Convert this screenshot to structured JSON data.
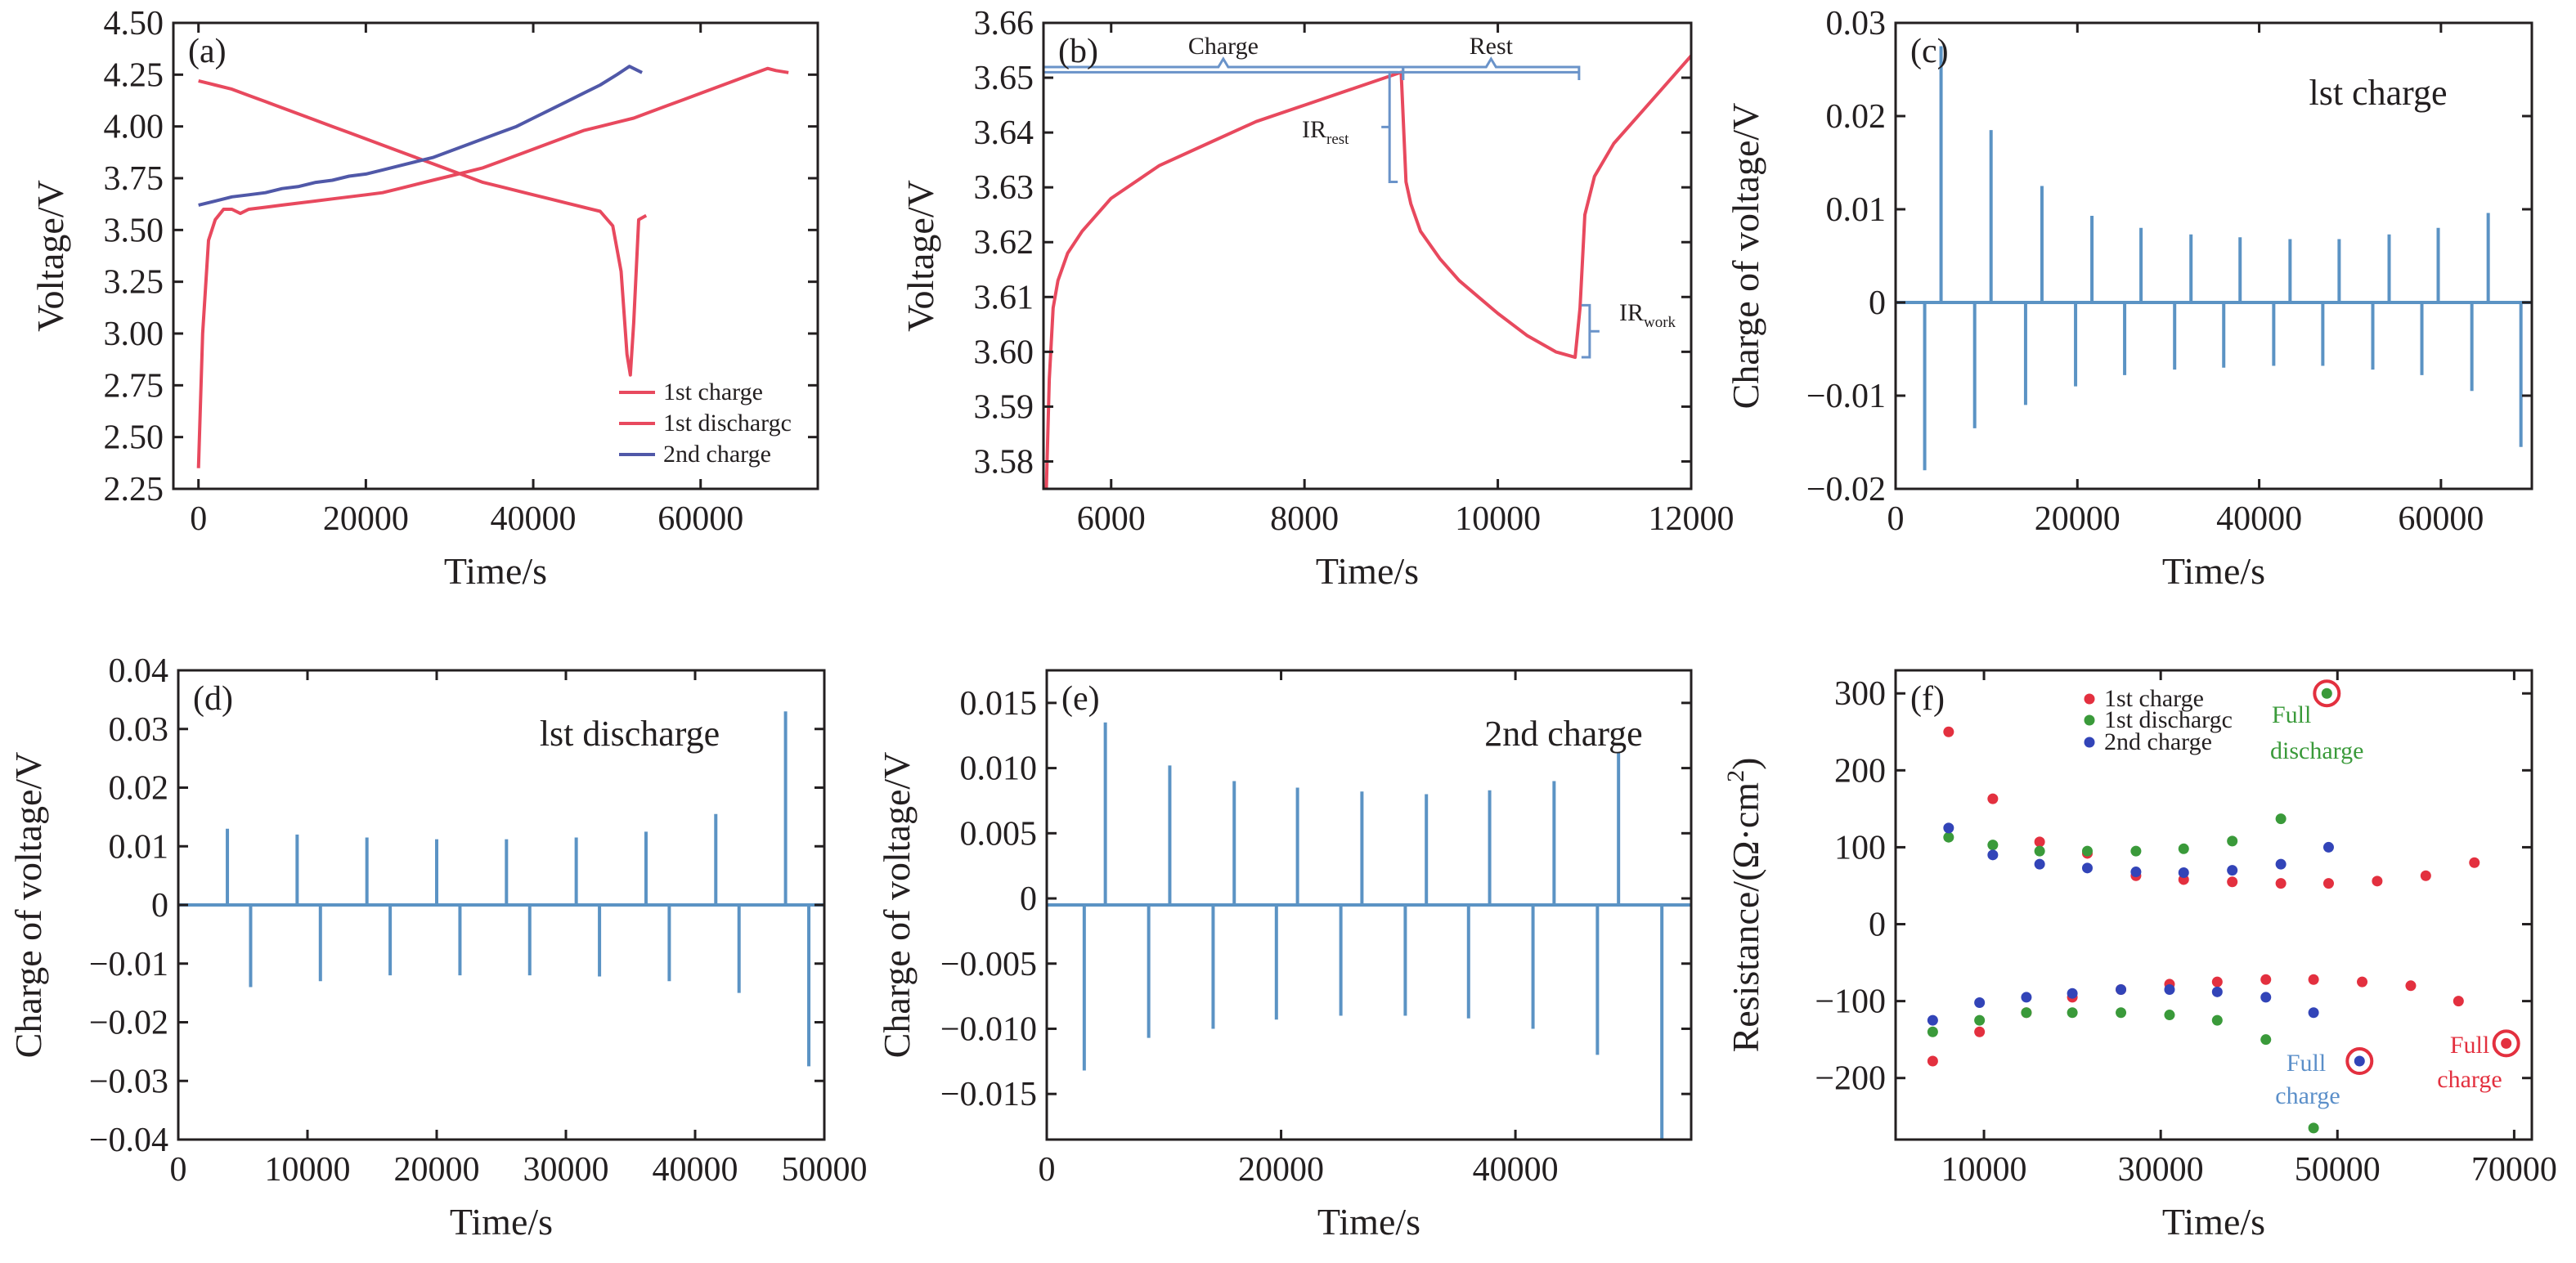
{
  "colors": {
    "charge1": "#e8495e",
    "discharge1": "#e8495e",
    "charge2": "#5058a8",
    "spike": "#5b93c4",
    "scatter_red": "#e3303f",
    "scatter_green": "#3a9a3a",
    "scatter_blue": "#3244b8",
    "annot_blue": "#5b8fc9",
    "bracket": "#6a93c9"
  },
  "chart_data": [
    {
      "id": "a",
      "panel_label": "(a)",
      "type": "line",
      "xlabel": "Time/s",
      "ylabel": "Voltage/V",
      "xlim": [
        -3000,
        74000
      ],
      "ylim": [
        2.25,
        4.5
      ],
      "xticks": [
        0,
        20000,
        40000,
        60000
      ],
      "xtick_labels": [
        "0",
        "20000",
        "40000",
        "60000"
      ],
      "yticks": [
        2.25,
        2.5,
        2.75,
        3.0,
        3.25,
        3.5,
        3.75,
        4.0,
        4.25,
        4.5
      ],
      "ytick_labels": [
        "2.25",
        "2.50",
        "2.75",
        "3.00",
        "3.25",
        "3.50",
        "3.75",
        "4.00",
        "4.25",
        "4.50"
      ],
      "legend_position": "bottom-right",
      "series": [
        {
          "name": "1st charge",
          "color_key": "charge1",
          "x": [
            0,
            500,
            1200,
            2000,
            3000,
            4000,
            5000,
            6000,
            8000,
            10000,
            12000,
            14000,
            16000,
            18000,
            20000,
            22000,
            24000,
            26000,
            28000,
            30000,
            32000,
            34000,
            36000,
            38000,
            40000,
            42000,
            44000,
            46000,
            48000,
            50000,
            52000,
            54000,
            56000,
            58000,
            60000,
            62000,
            64000,
            66000,
            68000,
            69000,
            70500
          ],
          "y": [
            2.35,
            3.0,
            3.45,
            3.55,
            3.6,
            3.6,
            3.58,
            3.6,
            3.61,
            3.62,
            3.63,
            3.64,
            3.65,
            3.66,
            3.67,
            3.68,
            3.7,
            3.72,
            3.74,
            3.76,
            3.78,
            3.8,
            3.83,
            3.86,
            3.89,
            3.92,
            3.95,
            3.98,
            4.0,
            4.02,
            4.04,
            4.07,
            4.1,
            4.13,
            4.16,
            4.19,
            4.22,
            4.25,
            4.28,
            4.27,
            4.26
          ]
        },
        {
          "name": "1st dischargc",
          "color_key": "discharge1",
          "x": [
            0,
            2000,
            4000,
            6000,
            8000,
            10000,
            12000,
            14000,
            16000,
            18000,
            20000,
            22000,
            24000,
            26000,
            28000,
            30000,
            32000,
            34000,
            36000,
            38000,
            40000,
            42000,
            44000,
            46000,
            48000,
            49500,
            50500,
            51200,
            51600,
            52000,
            52600,
            53500
          ],
          "y": [
            4.22,
            4.2,
            4.18,
            4.15,
            4.12,
            4.09,
            4.06,
            4.03,
            4.0,
            3.97,
            3.94,
            3.91,
            3.88,
            3.85,
            3.82,
            3.79,
            3.76,
            3.73,
            3.71,
            3.69,
            3.67,
            3.65,
            3.63,
            3.61,
            3.59,
            3.52,
            3.3,
            2.9,
            2.8,
            3.05,
            3.55,
            3.57
          ]
        },
        {
          "name": "2nd charge",
          "color_key": "charge2",
          "x": [
            0,
            2000,
            4000,
            6000,
            8000,
            10000,
            12000,
            14000,
            16000,
            18000,
            20000,
            22000,
            24000,
            26000,
            28000,
            30000,
            32000,
            34000,
            36000,
            38000,
            40000,
            42000,
            44000,
            46000,
            48000,
            50000,
            51500,
            53000
          ],
          "y": [
            3.62,
            3.64,
            3.66,
            3.67,
            3.68,
            3.7,
            3.71,
            3.73,
            3.74,
            3.76,
            3.77,
            3.79,
            3.81,
            3.83,
            3.85,
            3.88,
            3.91,
            3.94,
            3.97,
            4.0,
            4.04,
            4.08,
            4.12,
            4.16,
            4.2,
            4.25,
            4.29,
            4.26
          ]
        }
      ]
    },
    {
      "id": "b",
      "panel_label": "(b)",
      "type": "line",
      "xlabel": "Time/s",
      "ylabel": "Voltage/V",
      "xlim": [
        5300,
        12000
      ],
      "ylim": [
        3.575,
        3.66
      ],
      "xticks": [
        6000,
        8000,
        10000,
        12000
      ],
      "xtick_labels": [
        "6000",
        "8000",
        "10000",
        "12000"
      ],
      "yticks": [
        3.58,
        3.59,
        3.6,
        3.61,
        3.62,
        3.63,
        3.64,
        3.65,
        3.66
      ],
      "ytick_labels": [
        "3.58",
        "3.59",
        "3.60",
        "3.61",
        "3.62",
        "3.63",
        "3.64",
        "3.65",
        "3.66"
      ],
      "annotations": {
        "charge": "Charge",
        "rest": "Rest",
        "ir_rest": "IR",
        "ir_rest_sub": "rest",
        "ir_work": "IR",
        "ir_work_sub": "work"
      },
      "series": [
        {
          "name": "",
          "color_key": "charge1",
          "x": [
            5330,
            5360,
            5400,
            5450,
            5550,
            5700,
            6000,
            6500,
            7000,
            7500,
            8000,
            8500,
            9000,
            9050,
            9100,
            9200,
            9400,
            9600,
            9800,
            10000,
            10300,
            10600,
            10800,
            10850,
            10900,
            11000,
            11200,
            11500,
            11800,
            12000
          ],
          "y": [
            3.575,
            3.595,
            3.608,
            3.613,
            3.618,
            3.622,
            3.628,
            3.634,
            3.638,
            3.642,
            3.645,
            3.648,
            3.651,
            3.631,
            3.627,
            3.622,
            3.617,
            3.613,
            3.61,
            3.607,
            3.603,
            3.6,
            3.599,
            3.608,
            3.625,
            3.632,
            3.638,
            3.644,
            3.65,
            3.654
          ]
        }
      ]
    },
    {
      "id": "c",
      "panel_label": "(c)",
      "type": "line",
      "title": "lst charge",
      "xlabel": "Time/s",
      "ylabel": "Charge of voltage/V",
      "xlim": [
        0,
        70000
      ],
      "ylim": [
        -0.02,
        0.03
      ],
      "xticks": [
        0,
        20000,
        40000,
        60000
      ],
      "xtick_labels": [
        "0",
        "20000",
        "40000",
        "60000"
      ],
      "yticks": [
        -0.02,
        -0.01,
        0,
        0.01,
        0.02,
        0.03
      ],
      "ytick_labels": [
        "−0.02",
        "−0.01",
        "0",
        "0.01",
        "0.02",
        "0.03"
      ],
      "baseline": 0,
      "spikes": [
        {
          "x": 3200,
          "y": -0.018
        },
        {
          "x": 5000,
          "y": 0.0275
        },
        {
          "x": 8700,
          "y": -0.0135
        },
        {
          "x": 10500,
          "y": 0.0185
        },
        {
          "x": 14300,
          "y": -0.011
        },
        {
          "x": 16100,
          "y": 0.0125
        },
        {
          "x": 19800,
          "y": -0.009
        },
        {
          "x": 21600,
          "y": 0.0093
        },
        {
          "x": 25200,
          "y": -0.0078
        },
        {
          "x": 27000,
          "y": 0.008
        },
        {
          "x": 30700,
          "y": -0.0072
        },
        {
          "x": 32500,
          "y": 0.0073
        },
        {
          "x": 36100,
          "y": -0.007
        },
        {
          "x": 37900,
          "y": 0.007
        },
        {
          "x": 41600,
          "y": -0.0068
        },
        {
          "x": 43400,
          "y": 0.0068
        },
        {
          "x": 47000,
          "y": -0.0068
        },
        {
          "x": 48800,
          "y": 0.0068
        },
        {
          "x": 52500,
          "y": -0.0072
        },
        {
          "x": 54300,
          "y": 0.0073
        },
        {
          "x": 57900,
          "y": -0.0078
        },
        {
          "x": 59700,
          "y": 0.008
        },
        {
          "x": 63400,
          "y": -0.0095
        },
        {
          "x": 65200,
          "y": 0.0096
        },
        {
          "x": 68800,
          "y": -0.0155
        }
      ]
    },
    {
      "id": "d",
      "panel_label": "(d)",
      "type": "line",
      "title": "lst discharge",
      "xlabel": "Time/s",
      "ylabel": "Charge of voltage/V",
      "xlim": [
        0,
        50000
      ],
      "ylim": [
        -0.04,
        0.04
      ],
      "xticks": [
        0,
        10000,
        20000,
        30000,
        40000,
        50000
      ],
      "xtick_labels": [
        "0",
        "10000",
        "20000",
        "30000",
        "40000",
        "50000"
      ],
      "yticks": [
        -0.04,
        -0.03,
        -0.02,
        -0.01,
        0,
        0.01,
        0.02,
        0.03,
        0.04
      ],
      "ytick_labels": [
        "−0.04",
        "−0.03",
        "−0.02",
        "−0.01",
        "0",
        "0.01",
        "0.02",
        "0.03",
        "0.04"
      ],
      "baseline": 0,
      "spikes": [
        {
          "x": 3800,
          "y": 0.013
        },
        {
          "x": 5600,
          "y": -0.014
        },
        {
          "x": 9200,
          "y": 0.012
        },
        {
          "x": 11000,
          "y": -0.013
        },
        {
          "x": 14600,
          "y": 0.0115
        },
        {
          "x": 16400,
          "y": -0.012
        },
        {
          "x": 20000,
          "y": 0.0112
        },
        {
          "x": 21800,
          "y": -0.012
        },
        {
          "x": 25400,
          "y": 0.0112
        },
        {
          "x": 27200,
          "y": -0.012
        },
        {
          "x": 30800,
          "y": 0.0115
        },
        {
          "x": 32600,
          "y": -0.0122
        },
        {
          "x": 36200,
          "y": 0.0125
        },
        {
          "x": 38000,
          "y": -0.013
        },
        {
          "x": 41600,
          "y": 0.0155
        },
        {
          "x": 43400,
          "y": -0.015
        },
        {
          "x": 47000,
          "y": 0.033
        },
        {
          "x": 48800,
          "y": -0.0275
        }
      ]
    },
    {
      "id": "e",
      "panel_label": "(e)",
      "type": "line",
      "title": "2nd charge",
      "xlabel": "Time/s",
      "ylabel": "Charge of voltage/V",
      "xlim": [
        0,
        55000
      ],
      "ylim": [
        -0.0185,
        0.0175
      ],
      "xticks": [
        0,
        20000,
        40000
      ],
      "xtick_labels": [
        "0",
        "20000",
        "40000"
      ],
      "yticks": [
        -0.015,
        -0.01,
        -0.005,
        0,
        0.005,
        0.01,
        0.015
      ],
      "ytick_labels": [
        "−0.015",
        "−0.010",
        "−0.005",
        "0",
        "0.005",
        "0.010",
        "0.015"
      ],
      "baseline": -0.0005,
      "spikes": [
        {
          "x": 3200,
          "y": -0.0132
        },
        {
          "x": 5000,
          "y": 0.0135
        },
        {
          "x": 8700,
          "y": -0.0107
        },
        {
          "x": 10500,
          "y": 0.0102
        },
        {
          "x": 14200,
          "y": -0.01
        },
        {
          "x": 16000,
          "y": 0.009
        },
        {
          "x": 19600,
          "y": -0.0093
        },
        {
          "x": 21400,
          "y": 0.0085
        },
        {
          "x": 25100,
          "y": -0.009
        },
        {
          "x": 26900,
          "y": 0.0082
        },
        {
          "x": 30600,
          "y": -0.009
        },
        {
          "x": 32400,
          "y": 0.008
        },
        {
          "x": 36000,
          "y": -0.0092
        },
        {
          "x": 37800,
          "y": 0.0083
        },
        {
          "x": 41500,
          "y": -0.01
        },
        {
          "x": 43300,
          "y": 0.009
        },
        {
          "x": 47000,
          "y": -0.012
        },
        {
          "x": 48800,
          "y": 0.0112
        },
        {
          "x": 52500,
          "y": -0.0185
        }
      ]
    },
    {
      "id": "f",
      "panel_label": "(f)",
      "type": "scatter",
      "xlabel": "Time/s",
      "ylabel": "Resistance/(Ω·cm",
      "ylabel_sup": "2",
      "ylabel_close": ")",
      "xlim": [
        0,
        72000
      ],
      "ylim": [
        -280,
        330
      ],
      "xticks": [
        10000,
        30000,
        50000,
        70000
      ],
      "xtick_labels": [
        "10000",
        "30000",
        "50000",
        "70000"
      ],
      "yticks": [
        -200,
        -100,
        0,
        100,
        200,
        300
      ],
      "ytick_labels": [
        "−200",
        "−100",
        "0",
        "100",
        "200",
        "300"
      ],
      "legend_position": "top-center",
      "annotations": {
        "full_discharge_1": "Full",
        "full_discharge_2": "discharge",
        "full_charge_blue_1": "Full",
        "full_charge_blue_2": "charge",
        "full_charge_red_1": "Full",
        "full_charge_red_2": "charge"
      },
      "series": [
        {
          "name": "1st charge",
          "color_key": "scatter_red",
          "x": [
            4200,
            6000,
            9500,
            11000,
            14800,
            16300,
            20000,
            21700,
            25500,
            27200,
            31000,
            32600,
            36400,
            38100,
            41900,
            43600,
            47300,
            49000,
            52800,
            54500,
            58300,
            60000,
            63700,
            65500,
            69100
          ],
          "y": [
            -178,
            250,
            -140,
            163,
            -115,
            107,
            -95,
            92,
            -85,
            63,
            -78,
            58,
            -75,
            55,
            -72,
            53,
            -72,
            53,
            -75,
            56,
            -80,
            63,
            -100,
            80,
            -155
          ]
        },
        {
          "name": "1st dischargc",
          "color_key": "scatter_green",
          "x": [
            4200,
            6000,
            9500,
            11000,
            14800,
            16300,
            20000,
            21700,
            25500,
            27200,
            31000,
            32600,
            36400,
            38100,
            41900,
            43600,
            47300,
            48800
          ],
          "y": [
            -140,
            113,
            -125,
            103,
            -115,
            95,
            -115,
            95,
            -115,
            95,
            -118,
            98,
            -125,
            108,
            -150,
            137,
            -265,
            300
          ]
        },
        {
          "name": "2nd charge",
          "color_key": "scatter_blue",
          "x": [
            4200,
            6000,
            9500,
            11000,
            14800,
            16300,
            20000,
            21700,
            25500,
            27200,
            31000,
            32600,
            36400,
            38100,
            41900,
            43600,
            47300,
            49000,
            52500
          ],
          "y": [
            -125,
            125,
            -102,
            90,
            -95,
            78,
            -90,
            73,
            -85,
            68,
            -85,
            67,
            -88,
            70,
            -95,
            78,
            -115,
            100,
            -178
          ]
        }
      ]
    }
  ]
}
